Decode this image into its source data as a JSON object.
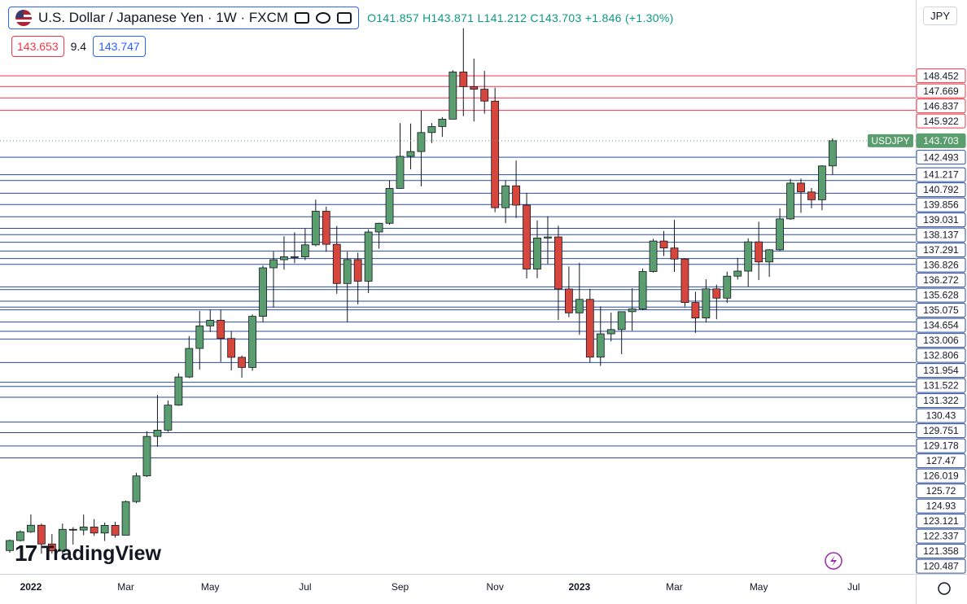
{
  "header": {
    "title": "U.S. Dollar / Japanese Yen · 1W · FXCM",
    "ohlc": "O141.857 H143.871 L141.212 C143.703 +1.846 (+1.30%)",
    "bid": "143.653",
    "spread": "9.4",
    "ask": "143.747",
    "currency": "JPY",
    "logo": "TradingView"
  },
  "chart_data": {
    "type": "candlestick",
    "categories": [
      null,
      null,
      "2022",
      null,
      null,
      null,
      null,
      null,
      null,
      null,
      null,
      "Mar",
      null,
      null,
      null,
      null,
      null,
      null,
      null,
      "May",
      null,
      null,
      null,
      null,
      null,
      null,
      null,
      null,
      "Jul",
      null,
      null,
      null,
      null,
      null,
      null,
      null,
      null,
      "Sep",
      null,
      null,
      null,
      null,
      null,
      null,
      null,
      null,
      "Nov",
      null,
      null,
      null,
      null,
      null,
      null,
      null,
      "2023",
      null,
      null,
      null,
      null,
      null,
      null,
      null,
      null,
      "Mar",
      null,
      null,
      null,
      null,
      null,
      null,
      null,
      "May",
      null,
      null,
      null,
      null,
      null,
      null,
      null,
      null,
      "Jul"
    ],
    "open": [
      113.71,
      114.44,
      115.08,
      115.56,
      114.19,
      113.68,
      115.26,
      115.21,
      115.43,
      114.99,
      115.55,
      114.83,
      117.29,
      119.17,
      122.06,
      122.52,
      124.35,
      126.41,
      128.5,
      130.15,
      130.56,
      129.23,
      127.85,
      127.11,
      130.85,
      134.4,
      134.99,
      135.21,
      135.2,
      136.08,
      138.54,
      136.12,
      133.25,
      135.0,
      133.42,
      137.02,
      137.66,
      140.21,
      142.56,
      142.91,
      144.3,
      144.74,
      145.28,
      148.73,
      147.66,
      147.47,
      146.6,
      138.8,
      140.4,
      138.99,
      134.31,
      136.58,
      136.66,
      132.85,
      131.1,
      132.09,
      127.86,
      129.57,
      129.88,
      131.19,
      131.39,
      134.13,
      136.36,
      135.85,
      135.04,
      131.86,
      130.73,
      132.86,
      132.18,
      133.79,
      134.16,
      136.3,
      134.83,
      135.72,
      137.98,
      140.6,
      139.95,
      139.38,
      141.857,
      null,
      null
    ],
    "high": [
      114.51,
      115.19,
      116.35,
      115.68,
      114.91,
      115.68,
      115.42,
      116.34,
      116.01,
      115.76,
      115.81,
      117.36,
      119.4,
      122.44,
      125.1,
      124.68,
      126.68,
      129.4,
      131.25,
      131.35,
      131.34,
      129.77,
      127.98,
      130.99,
      134.56,
      135.59,
      136.71,
      137.0,
      137.28,
      139.39,
      138.88,
      137.46,
      135.58,
      135.51,
      137.22,
      137.7,
      140.8,
      144.99,
      144.96,
      145.9,
      145.0,
      145.43,
      148.86,
      151.94,
      149.71,
      148.82,
      147.59,
      140.8,
      142.25,
      139.89,
      137.86,
      138.17,
      137.48,
      134.5,
      134.77,
      132.87,
      131.58,
      131.12,
      131.2,
      132.9,
      134.35,
      136.53,
      137.1,
      137.91,
      135.11,
      132.65,
      133.56,
      133.17,
      134.12,
      135.13,
      136.56,
      137.77,
      135.76,
      138.75,
      140.91,
      140.93,
      140.24,
      141.91,
      143.871,
      null,
      null
    ],
    "low": [
      113.55,
      114.37,
      115.0,
      113.48,
      113.47,
      113.46,
      114.15,
      114.83,
      114.78,
      114.41,
      114.65,
      114.83,
      117.17,
      119.09,
      121.3,
      122.39,
      124.3,
      126.33,
      126.95,
      129.7,
      127.51,
      126.89,
      126.36,
      126.86,
      130.42,
      131.5,
      134.27,
      134.74,
      134.96,
      135.98,
      135.57,
      132.5,
      130.41,
      131.73,
      132.55,
      135.8,
      137.55,
      140.19,
      141.6,
      140.36,
      143.53,
      143.98,
      145.27,
      145.5,
      145.11,
      145.68,
      138.47,
      137.67,
      138.05,
      133.62,
      133.64,
      134.68,
      130.58,
      130.79,
      129.5,
      127.46,
      127.22,
      129.02,
      128.08,
      129.8,
      131.29,
      134.05,
      135.26,
      134.1,
      131.56,
      129.64,
      130.4,
      130.63,
      131.83,
      133.54,
      133.02,
      133.5,
      133.74,
      135.64,
      137.91,
      138.42,
      138.76,
      138.61,
      141.212,
      null,
      null
    ],
    "close": [
      114.44,
      115.08,
      115.56,
      114.19,
      113.68,
      115.26,
      115.21,
      115.43,
      114.99,
      115.55,
      114.83,
      117.29,
      119.17,
      122.06,
      122.52,
      124.35,
      126.41,
      128.5,
      130.15,
      130.56,
      129.23,
      127.85,
      127.11,
      130.85,
      134.4,
      134.99,
      135.21,
      135.2,
      136.08,
      138.54,
      136.12,
      133.25,
      135.0,
      133.42,
      137.02,
      137.66,
      140.21,
      142.56,
      142.91,
      144.3,
      144.74,
      145.28,
      148.73,
      147.66,
      147.47,
      146.6,
      138.8,
      140.4,
      138.99,
      134.31,
      136.58,
      136.66,
      132.85,
      131.1,
      132.09,
      127.86,
      129.57,
      129.88,
      131.19,
      131.39,
      134.13,
      136.36,
      135.85,
      135.04,
      131.86,
      130.73,
      132.86,
      132.18,
      133.79,
      134.16,
      136.3,
      134.83,
      135.72,
      137.98,
      140.6,
      139.95,
      139.38,
      141.857,
      143.703,
      null,
      null
    ],
    "up_color": "#5a9e6f",
    "down_color": "#d6463c",
    "ylim": [
      112,
      154
    ],
    "levels": [
      {
        "color": "#f23645",
        "values": [
          148.452,
          147.669,
          146.837,
          145.922
        ]
      },
      {
        "color": "#2a4d9b",
        "values": [
          142.493,
          141.217,
          140.792,
          139.856,
          139.031,
          138.137,
          137.291,
          136.826,
          136.272,
          135.628,
          135.075,
          134.654,
          133.006,
          132.806,
          131.954,
          131.522,
          131.322,
          130.43,
          129.751,
          129.178,
          127.47,
          126.019,
          125.72,
          124.93,
          123.121,
          122.337,
          121.358,
          120.487
        ]
      }
    ],
    "last": {
      "name": "USDJPY",
      "value": 143.703,
      "color": "#5a9e6f"
    }
  }
}
